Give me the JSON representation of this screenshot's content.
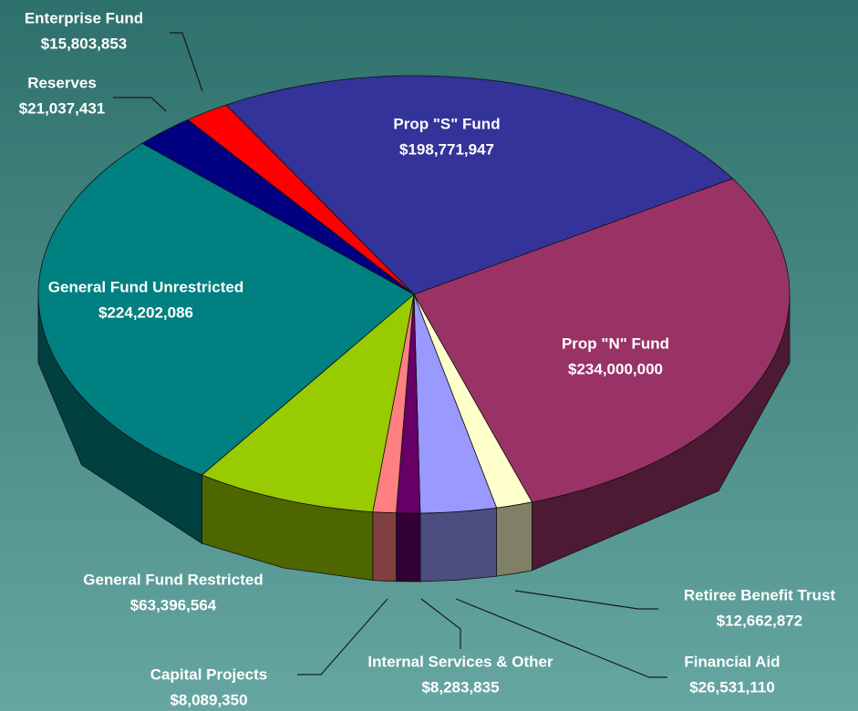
{
  "chart_data": {
    "type": "pie",
    "categories": [
      "Prop \"S\" Fund",
      "Prop \"N\" Fund",
      "Retiree Benefit Trust",
      "Financial Aid",
      "Internal Services & Other",
      "Capital Projects",
      "General Fund Restricted",
      "General Fund Unrestricted",
      "Reserves",
      "Enterprise Fund"
    ],
    "values": [
      198771947,
      234000000,
      12662872,
      26531110,
      8283835,
      8089350,
      63396564,
      224202086,
      21037431,
      15803853
    ],
    "value_labels": [
      "$198,771,947",
      "$234,000,000",
      "$12,662,872",
      "$26,531,110",
      "$8,283,835",
      "$8,089,350",
      "$63,396,564",
      "$224,202,086",
      "$21,037,431",
      "$15,803,853"
    ],
    "colors": [
      "#333399",
      "#993366",
      "#ffffcc",
      "#9999ff",
      "#660066",
      "#ff8080",
      "#99cc00",
      "#008080",
      "#000080",
      "#ff0000"
    ]
  }
}
